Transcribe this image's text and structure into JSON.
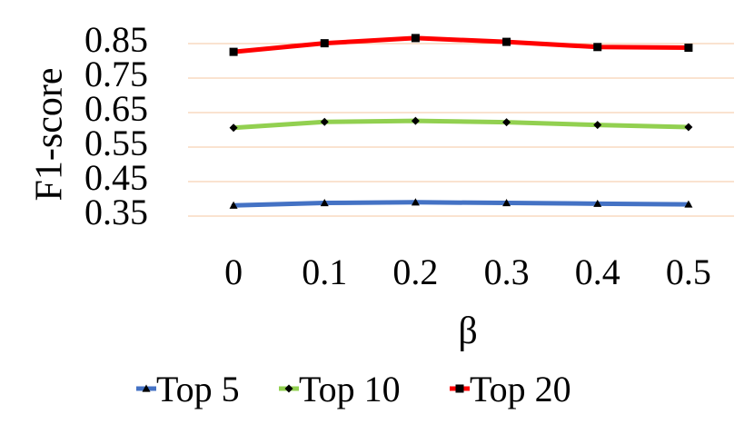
{
  "chart_data": {
    "type": "line",
    "title": "",
    "xlabel": "β",
    "ylabel": "F1-score",
    "x": [
      "0",
      "0.1",
      "0.2",
      "0.3",
      "0.4",
      "0.5"
    ],
    "y_ticks": [
      "0.35",
      "0.45",
      "0.55",
      "0.65",
      "0.75",
      "0.85"
    ],
    "ylim": [
      0.35,
      0.85
    ],
    "grid": true,
    "legend_position": "bottom",
    "series": [
      {
        "name": "Top 5",
        "color": "#4472C4",
        "marker": "triangle",
        "values": [
          0.381,
          0.388,
          0.39,
          0.388,
          0.386,
          0.384
        ]
      },
      {
        "name": "Top 10",
        "color": "#92D050",
        "marker": "diamond",
        "values": [
          0.606,
          0.623,
          0.626,
          0.622,
          0.614,
          0.608
        ]
      },
      {
        "name": "Top 20",
        "color": "#FF0000",
        "marker": "square",
        "values": [
          0.826,
          0.851,
          0.866,
          0.855,
          0.84,
          0.838
        ]
      }
    ]
  }
}
